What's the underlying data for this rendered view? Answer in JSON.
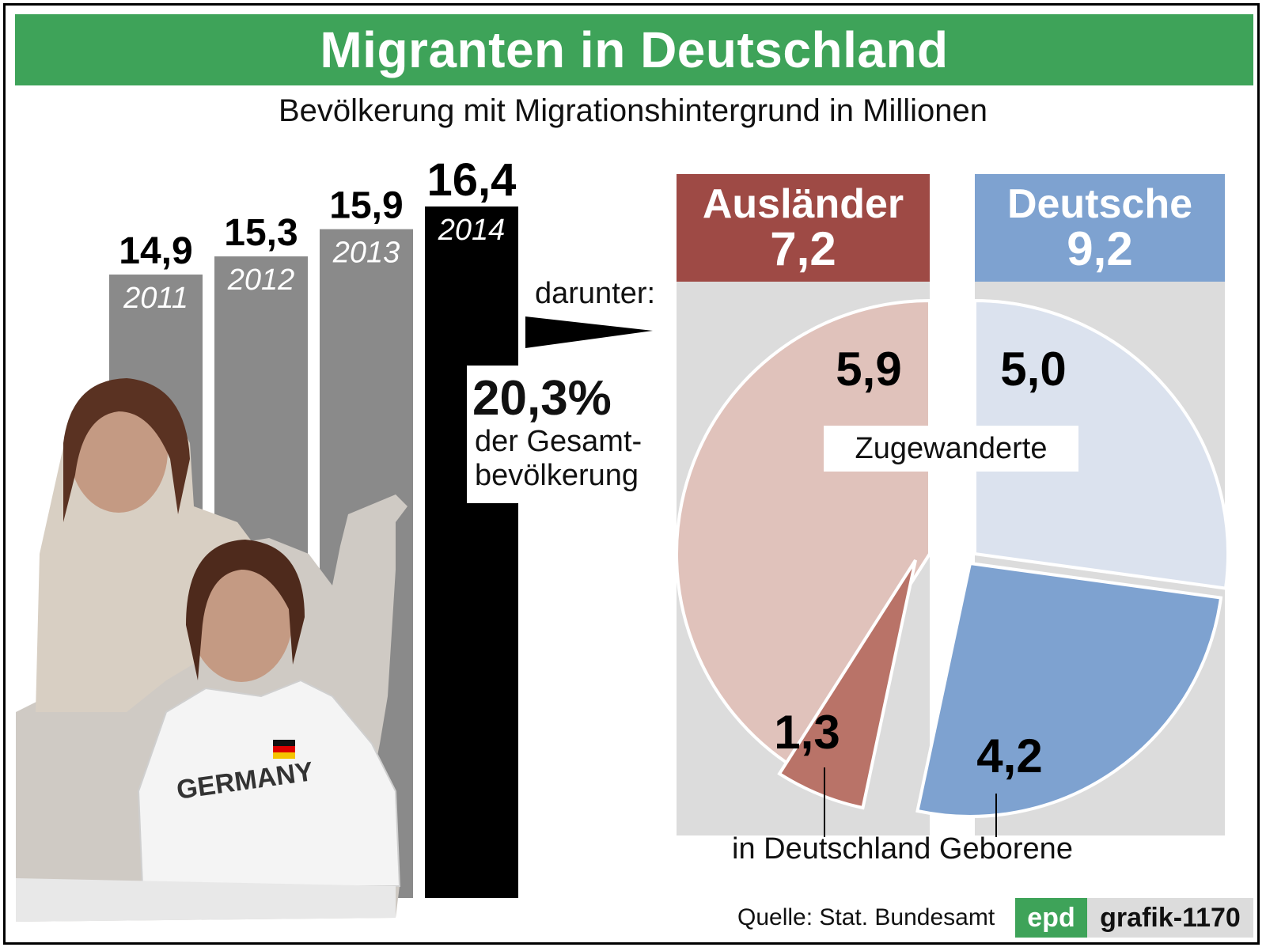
{
  "title": "Migranten in Deutschland",
  "subtitle": "Bevölkerung mit Migrationshintergrund in Millionen",
  "annotations": {
    "darunter": "darunter:",
    "percent": "20,3%",
    "percent_line1": "der Gesamt-",
    "percent_line2": "bevölkerung",
    "zugewanderte": "Zugewanderte",
    "geborene": "in Deutschland Geborene"
  },
  "footer": {
    "source": "Quelle: Stat. Bundesamt",
    "brand": "epd",
    "code": "grafik-1170"
  },
  "colors": {
    "title_green": "#3ea359",
    "auslaender_dark": "#9e4a45",
    "auslaender_light": "#e0c2bb",
    "auslaender_mid": "#b97368",
    "deutsche_dark": "#7ea2d0",
    "deutsche_light": "#dbe2ee",
    "bar_grey": "#8a8a8a",
    "bar_black": "#000000"
  },
  "chart_data": [
    {
      "type": "bar",
      "title": "Bevölkerung mit Migrationshintergrund in Millionen",
      "categories": [
        "2011",
        "2012",
        "2013",
        "2014"
      ],
      "values": [
        14.9,
        15.3,
        15.9,
        16.4
      ],
      "value_labels": [
        "14,9",
        "15,3",
        "15,9",
        "16,4"
      ],
      "unit": "Millionen"
    },
    {
      "type": "pie",
      "groups": [
        {
          "name": "Ausländer",
          "total": 7.2,
          "total_label": "7,2",
          "slices": [
            {
              "label": "Zugewanderte",
              "value": 5.9,
              "value_label": "5,9"
            },
            {
              "label": "in Deutschland Geborene",
              "value": 1.3,
              "value_label": "1,3"
            }
          ]
        },
        {
          "name": "Deutsche",
          "total": 9.2,
          "total_label": "9,2",
          "slices": [
            {
              "label": "Zugewanderte",
              "value": 5.0,
              "value_label": "5,0"
            },
            {
              "label": "in Deutschland Geborene",
              "value": 4.2,
              "value_label": "4,2"
            }
          ]
        }
      ]
    }
  ]
}
